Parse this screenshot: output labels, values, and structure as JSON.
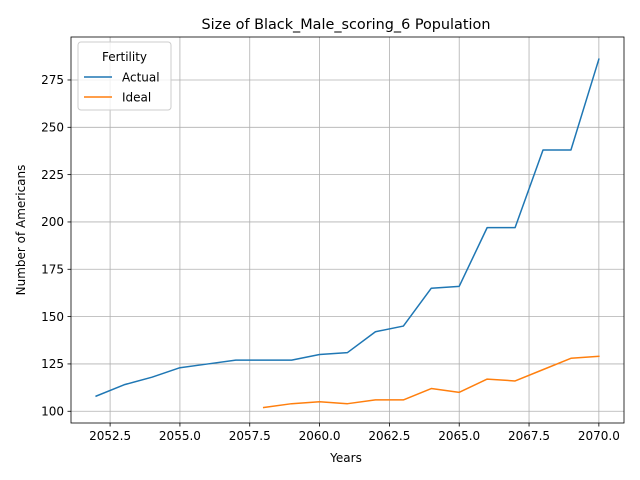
{
  "chart_data": {
    "type": "line",
    "title": "Size of Black_Male_scoring_6 Population",
    "xlabel": "Years",
    "ylabel": "Number of Americans",
    "xlim": [
      2051.1,
      2070.9
    ],
    "ylim": [
      93.8,
      297.7
    ],
    "xticks": [
      2052.5,
      2055.0,
      2057.5,
      2060.0,
      2062.5,
      2065.0,
      2067.5,
      2070.0
    ],
    "xtick_labels": [
      "2052.5",
      "2055.0",
      "2057.5",
      "2060.0",
      "2062.5",
      "2065.0",
      "2067.5",
      "2070.0"
    ],
    "yticks": [
      100,
      125,
      150,
      175,
      200,
      225,
      250,
      275
    ],
    "ytick_labels": [
      "100",
      "125",
      "150",
      "175",
      "200",
      "225",
      "250",
      "275"
    ],
    "grid": true,
    "legend": {
      "title": "Fertility",
      "position": "top-left"
    },
    "series": [
      {
        "name": "Actual",
        "color": "#1f77b4",
        "x": [
          2052,
          2053,
          2054,
          2055,
          2056,
          2057,
          2058,
          2059,
          2060,
          2061,
          2062,
          2063,
          2064,
          2065,
          2066,
          2067,
          2068,
          2069,
          2070
        ],
        "y": [
          108,
          114,
          118,
          123,
          125,
          127,
          127,
          127,
          130,
          131,
          142,
          145,
          165,
          166,
          197,
          197,
          238,
          238,
          286
        ]
      },
      {
        "name": "Ideal",
        "color": "#ff7f0e",
        "x": [
          2058,
          2059,
          2060,
          2061,
          2062,
          2063,
          2064,
          2065,
          2066,
          2067,
          2068,
          2069,
          2070
        ],
        "y": [
          102,
          104,
          105,
          104,
          106,
          106,
          112,
          110,
          117,
          116,
          122,
          128,
          129
        ]
      }
    ]
  }
}
